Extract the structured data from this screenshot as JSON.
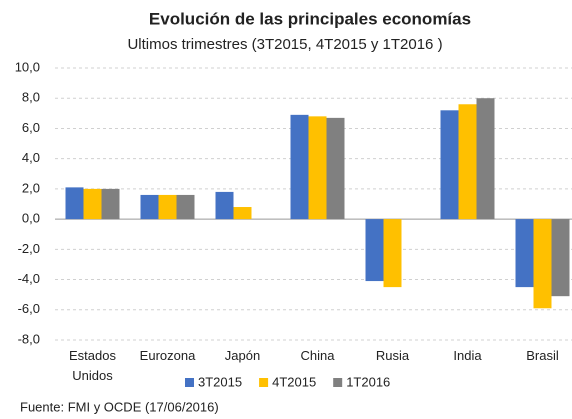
{
  "chart_data": {
    "type": "bar",
    "title": "Evolución de las principales economías",
    "subtitle": "Ultimos trimestres (3T2015, 4T2015 y 1T2016 )",
    "source": "Fuente: FMI y OCDE (17/06/2016)",
    "categories": [
      "Estados Unidos",
      "Eurozona",
      "Japón",
      "China",
      "Rusia",
      "India",
      "Brasil"
    ],
    "series": [
      {
        "name": "3T2015",
        "color": "#4472c4",
        "values": [
          2.1,
          1.6,
          1.8,
          6.9,
          -4.1,
          7.2,
          -4.5
        ]
      },
      {
        "name": "4T2015",
        "color": "#ffc000",
        "values": [
          2.0,
          1.6,
          0.8,
          6.8,
          -4.5,
          7.6,
          -5.9
        ]
      },
      {
        "name": "1T2016",
        "color": "#808080",
        "values": [
          2.0,
          1.6,
          null,
          6.7,
          null,
          8.0,
          -5.1
        ]
      }
    ],
    "ylim": [
      -8,
      10
    ],
    "yticks": [
      {
        "value": -8,
        "label": "-8,0"
      },
      {
        "value": -6,
        "label": "-6,0"
      },
      {
        "value": -4,
        "label": "-4,0"
      },
      {
        "value": -2,
        "label": "-2,0"
      },
      {
        "value": 0,
        "label": "0,0"
      },
      {
        "value": 2,
        "label": "2,0"
      },
      {
        "value": 4,
        "label": "4,0"
      },
      {
        "value": 6,
        "label": "6,0"
      },
      {
        "value": 8,
        "label": "8,0"
      },
      {
        "value": 10,
        "label": "10,0"
      }
    ],
    "grid": true,
    "legend": "bottom"
  }
}
